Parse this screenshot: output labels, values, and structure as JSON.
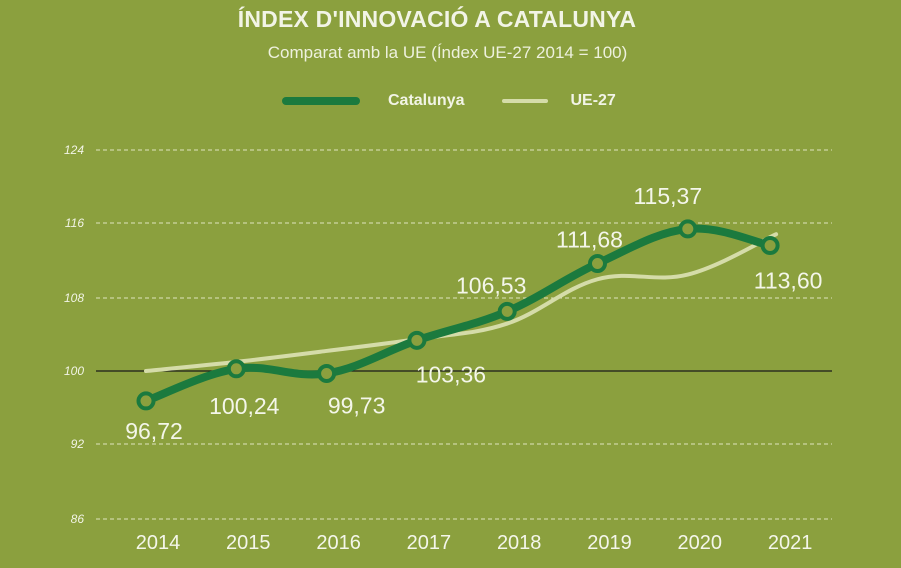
{
  "chart_data": {
    "type": "line",
    "title": "ÍNDEX D'INNOVACIÓ A CATALUNYA",
    "subtitle": "Comparat amb la UE (Índex UE-27 2014 = 100)",
    "xlabel": "",
    "ylabel": "",
    "categories": [
      "2014",
      "2015",
      "2016",
      "2017",
      "2018",
      "2019",
      "2020",
      "2021"
    ],
    "ylim": [
      86,
      124
    ],
    "yticks": [
      86,
      92,
      100,
      108,
      116,
      124
    ],
    "grid": true,
    "legend_position": "top-center",
    "series": [
      {
        "name": "Catalunya",
        "values": [
          96.72,
          100.24,
          99.73,
          103.36,
          106.53,
          111.68,
          115.37,
          113.6
        ],
        "labels": [
          "96,72",
          "100,24",
          "99,73",
          "103,36",
          "106,53",
          "111,68",
          "115,37",
          "113,60"
        ],
        "color": "#1b7a3e",
        "marker_fill": "#8ba03e"
      },
      {
        "name": "UE-27",
        "values": [
          100,
          101,
          102.2,
          103.5,
          105.2,
          110,
          110.5,
          114.8
        ],
        "color": "#d5dca9"
      }
    ],
    "colors": {
      "background": "#8ba03e",
      "grid": "#dfe5bf",
      "baseline": "#1a1a1a",
      "text": "#f2f4e6"
    }
  }
}
